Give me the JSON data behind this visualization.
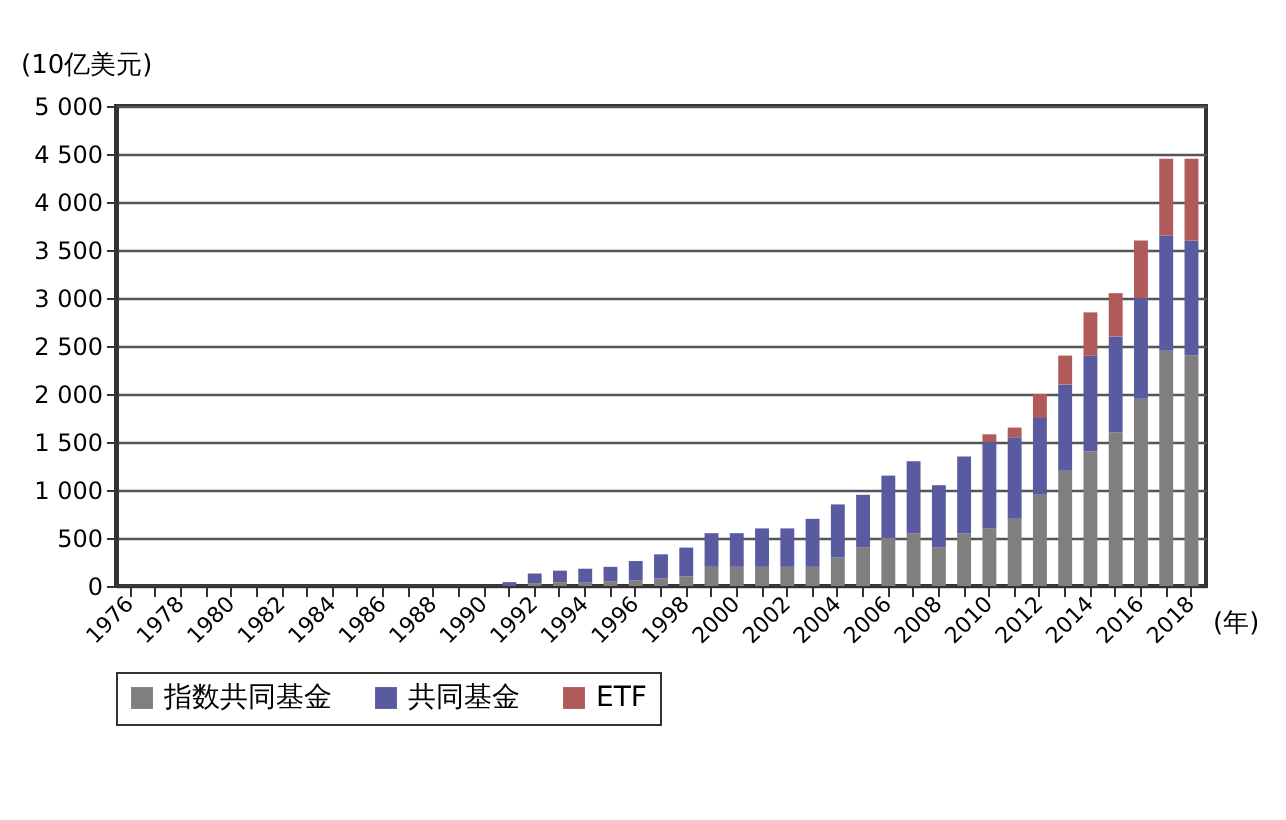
{
  "chart_data": {
    "type": "bar",
    "stacked": true,
    "xlabel": "(年)",
    "ylabel": "(10亿美元)",
    "categories": [
      "1976",
      null,
      "1978",
      null,
      "1980",
      null,
      "1982",
      null,
      "1984",
      null,
      "1986",
      null,
      "1988",
      null,
      "1990",
      null,
      "1992",
      null,
      "1994",
      null,
      "1996",
      null,
      "1998",
      null,
      "2000",
      null,
      "2002",
      null,
      "2004",
      null,
      "2006",
      null,
      "2008",
      null,
      "2010",
      null,
      "2012",
      null,
      "2014",
      null,
      "2016",
      null,
      "2018"
    ],
    "series": [
      {
        "name": "指数共同基金",
        "color": "#7f7f7f",
        "values": [
          null,
          null,
          null,
          null,
          null,
          null,
          null,
          null,
          null,
          null,
          null,
          null,
          null,
          null,
          null,
          null,
          30,
          40,
          40,
          50,
          60,
          80,
          100,
          200,
          200,
          200,
          200,
          200,
          300,
          400,
          500,
          550,
          400,
          550,
          600,
          700,
          950,
          1200,
          1400,
          1600,
          1950,
          2450,
          2400
        ]
      },
      {
        "name": "共同基金",
        "color": "#5a5aa0",
        "values": [
          null,
          null,
          null,
          null,
          null,
          null,
          null,
          null,
          null,
          null,
          null,
          null,
          null,
          null,
          null,
          40,
          100,
          120,
          140,
          150,
          200,
          250,
          300,
          350,
          350,
          400,
          400,
          500,
          550,
          550,
          650,
          750,
          650,
          800,
          900,
          850,
          800,
          900,
          1000,
          1000,
          1050,
          1200,
          1200
        ]
      },
      {
        "name": "ETF",
        "color": "#b05a5a",
        "values": [
          null,
          null,
          null,
          null,
          null,
          null,
          null,
          null,
          null,
          null,
          null,
          null,
          null,
          null,
          null,
          null,
          null,
          null,
          null,
          null,
          null,
          null,
          null,
          null,
          null,
          null,
          null,
          null,
          null,
          null,
          null,
          null,
          null,
          null,
          80,
          100,
          250,
          300,
          450,
          450,
          600,
          800,
          850
        ]
      }
    ],
    "ylim": [
      0,
      5000
    ],
    "yticks": [
      0,
      500,
      {
        "value": 1000,
        "label": "1 000"
      },
      {
        "value": 1500,
        "label": "1 500"
      },
      {
        "value": 2000,
        "label": "2 000"
      },
      {
        "value": 2500,
        "label": "2 500"
      },
      {
        "value": 3000,
        "label": "3 000"
      },
      {
        "value": 3500,
        "label": "3 500"
      },
      {
        "value": 4000,
        "label": "4 000"
      },
      {
        "value": 4500,
        "label": "4 500"
      },
      {
        "value": 5000,
        "label": "5 000"
      }
    ],
    "grid": "y",
    "legend": "bottom"
  }
}
